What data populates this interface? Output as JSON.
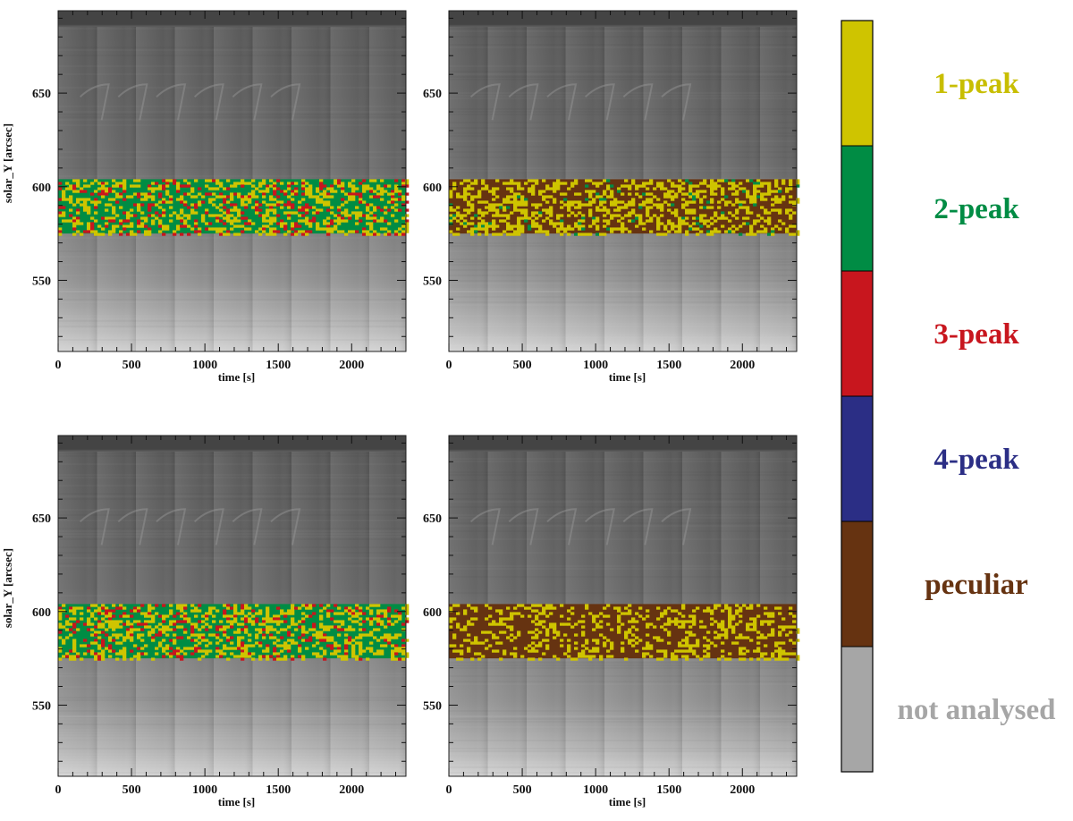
{
  "chart_data": {
    "type": "heatmap",
    "panels": [
      {
        "xlabel": "time [s]",
        "ylabel": "solar_Y [arcsec]",
        "xlim": [
          0,
          2370
        ],
        "ylim": [
          512,
          694
        ],
        "xticks": [
          0,
          500,
          1000,
          1500,
          2000
        ],
        "yticks": [
          550,
          600,
          650
        ],
        "classified_band_y": [
          575,
          604
        ],
        "dominant_classes": [
          "2-peak",
          "1-peak",
          "3-peak"
        ],
        "seed": 11
      },
      {
        "xlabel": "time [s]",
        "ylabel": "",
        "xlim": [
          0,
          2370
        ],
        "ylim": [
          512,
          694
        ],
        "xticks": [
          0,
          500,
          1000,
          1500,
          2000
        ],
        "yticks": [
          550,
          600,
          650
        ],
        "classified_band_y": [
          575,
          604
        ],
        "dominant_classes": [
          "peculiar",
          "1-peak",
          "2-peak"
        ],
        "seed": 23
      },
      {
        "xlabel": "time [s]",
        "ylabel": "solar_Y [arcsec]",
        "xlim": [
          0,
          2370
        ],
        "ylim": [
          512,
          694
        ],
        "xticks": [
          0,
          500,
          1000,
          1500,
          2000
        ],
        "yticks": [
          550,
          600,
          650
        ],
        "classified_band_y": [
          575,
          604
        ],
        "dominant_classes": [
          "2-peak",
          "1-peak",
          "3-peak"
        ],
        "seed": 37
      },
      {
        "xlabel": "time [s]",
        "ylabel": "",
        "xlim": [
          0,
          2370
        ],
        "ylim": [
          512,
          694
        ],
        "xticks": [
          0,
          500,
          1000,
          1500,
          2000
        ],
        "yticks": [
          550,
          600,
          650
        ],
        "classified_band_y": [
          575,
          604
        ],
        "dominant_classes": [
          "peculiar",
          "1-peak"
        ],
        "seed": 51
      }
    ],
    "legend": {
      "placement": "right",
      "entries": [
        {
          "label": "1-peak",
          "color": "#cfc400",
          "text_color": "#c8be00"
        },
        {
          "label": "2-peak",
          "color": "#008c44",
          "text_color": "#008c44"
        },
        {
          "label": "3-peak",
          "color": "#c8161e",
          "text_color": "#c8161e"
        },
        {
          "label": "4-peak",
          "color": "#2b2e85",
          "text_color": "#2b2e85"
        },
        {
          "label": "peculiar",
          "color": "#663311",
          "text_color": "#663311"
        },
        {
          "label": "not analysed",
          "color": "#a6a6a6",
          "text_color": "#a6a6a6"
        }
      ]
    }
  }
}
